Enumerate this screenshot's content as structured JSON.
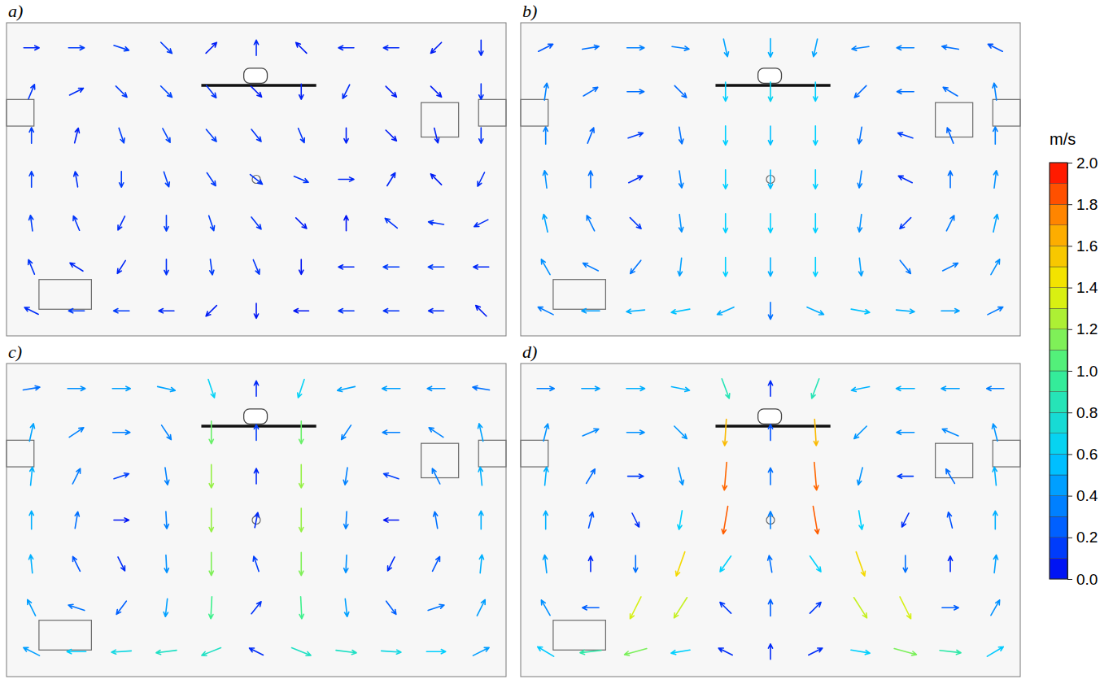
{
  "chart_data": [
    {
      "type": "quiver",
      "title": "a)",
      "xlim": [
        0,
        1
      ],
      "ylim": [
        0,
        1
      ],
      "tick_labels": false,
      "x": [
        0.05,
        0.14,
        0.23,
        0.32,
        0.41,
        0.5,
        0.59,
        0.68,
        0.77,
        0.86,
        0.95
      ],
      "y": [
        0.92,
        0.78,
        0.64,
        0.5,
        0.36,
        0.22,
        0.08
      ],
      "u": [
        [
          0.1,
          0.15,
          0.15,
          0.1,
          0.05,
          0,
          -0.05,
          -0.1,
          -0.1,
          -0.05,
          0
        ],
        [
          0.05,
          0.1,
          0.1,
          0.12,
          0.08,
          0.05,
          0,
          -0.05,
          0.05,
          0.05,
          0
        ],
        [
          0,
          0.02,
          0.05,
          0.08,
          0.1,
          0.08,
          0.05,
          0,
          0.05,
          0.02,
          0
        ],
        [
          0,
          -0.02,
          0,
          0.05,
          0.08,
          0.1,
          0.12,
          0.1,
          0.05,
          -0.05,
          -0.05
        ],
        [
          -0.02,
          -0.05,
          -0.05,
          0,
          0.05,
          0.08,
          0.05,
          0,
          -0.1,
          -0.12,
          -0.1
        ],
        [
          -0.05,
          -0.08,
          -0.05,
          0,
          0.02,
          0.05,
          0,
          -0.1,
          -0.15,
          -0.15,
          -0.1
        ],
        [
          -0.1,
          -0.15,
          -0.15,
          -0.1,
          -0.05,
          0,
          -0.05,
          -0.12,
          -0.12,
          -0.1,
          -0.05
        ]
      ],
      "v": [
        [
          0,
          0,
          -0.05,
          -0.1,
          0.05,
          0.1,
          0.05,
          0,
          0,
          -0.05,
          -0.1
        ],
        [
          0.12,
          0.05,
          -0.1,
          -0.12,
          -0.1,
          -0.05,
          -0.08,
          -0.1,
          -0.05,
          -0.05,
          -0.12
        ],
        [
          0.15,
          0.08,
          -0.15,
          -0.15,
          -0.12,
          -0.1,
          -0.12,
          -0.08,
          -0.05,
          -0.08,
          -0.12
        ],
        [
          0.15,
          0.12,
          -0.15,
          -0.15,
          -0.12,
          -0.08,
          -0.05,
          0,
          0.08,
          0.05,
          -0.1
        ],
        [
          0.15,
          0.12,
          -0.1,
          -0.15,
          -0.15,
          -0.1,
          -0.05,
          0.05,
          0.08,
          0.02,
          -0.05
        ],
        [
          0.12,
          0.05,
          -0.08,
          -0.12,
          -0.15,
          -0.12,
          -0.05,
          0,
          0,
          0,
          0
        ],
        [
          0.05,
          0,
          0,
          0,
          -0.05,
          -0.05,
          0,
          0,
          0,
          0,
          0.05
        ]
      ]
    },
    {
      "type": "quiver",
      "title": "b)",
      "xlim": [
        0,
        1
      ],
      "ylim": [
        0,
        1
      ],
      "tick_labels": false,
      "x": [
        0.05,
        0.14,
        0.23,
        0.32,
        0.41,
        0.5,
        0.59,
        0.68,
        0.77,
        0.86,
        0.95
      ],
      "y": [
        0.92,
        0.78,
        0.64,
        0.5,
        0.36,
        0.22,
        0.08
      ],
      "u": [
        [
          0.2,
          0.3,
          0.35,
          0.35,
          0.1,
          0,
          -0.1,
          -0.35,
          -0.35,
          -0.3,
          -0.2
        ],
        [
          0.05,
          0.25,
          0.3,
          0.2,
          0,
          0,
          0,
          -0.2,
          -0.3,
          -0.25,
          -0.05
        ],
        [
          0,
          0.1,
          0.15,
          0.05,
          0,
          0,
          0,
          -0.05,
          -0.15,
          -0.1,
          0
        ],
        [
          -0.05,
          0,
          0.1,
          0.05,
          0,
          0,
          0,
          -0.05,
          -0.1,
          0,
          0.05
        ],
        [
          -0.1,
          -0.15,
          0.1,
          0.05,
          0,
          0,
          0,
          -0.05,
          -0.1,
          0.15,
          0.1
        ],
        [
          -0.2,
          -0.3,
          -0.2,
          -0.05,
          0,
          0,
          0,
          0.05,
          0.2,
          0.3,
          0.2
        ],
        [
          -0.3,
          -0.45,
          -0.5,
          -0.55,
          -0.45,
          0,
          0.45,
          0.55,
          0.5,
          0.45,
          0.3
        ]
      ],
      "v": [
        [
          0.1,
          0.05,
          0,
          -0.05,
          -0.45,
          -0.5,
          -0.45,
          -0.05,
          0,
          0.05,
          0.1
        ],
        [
          0.35,
          0.15,
          0,
          -0.2,
          -0.6,
          -0.65,
          -0.6,
          -0.2,
          0,
          0.15,
          0.35
        ],
        [
          0.35,
          0.25,
          0.05,
          -0.3,
          -0.6,
          -0.55,
          -0.6,
          -0.3,
          0.05,
          0.25,
          0.35
        ],
        [
          0.4,
          0.3,
          0.05,
          -0.35,
          -0.6,
          -0.55,
          -0.6,
          -0.35,
          0.05,
          0.3,
          0.4
        ],
        [
          0.45,
          0.3,
          -0.1,
          -0.4,
          -0.6,
          -0.6,
          -0.6,
          -0.4,
          -0.1,
          0.3,
          0.45
        ],
        [
          0.35,
          0.15,
          -0.25,
          -0.45,
          -0.6,
          -0.5,
          -0.6,
          -0.45,
          -0.25,
          0.15,
          0.35
        ],
        [
          0.15,
          0,
          -0.05,
          -0.1,
          -0.2,
          -0.3,
          -0.2,
          -0.1,
          -0.05,
          0,
          0.15
        ]
      ]
    },
    {
      "type": "quiver",
      "title": "c)",
      "xlim": [
        0,
        1
      ],
      "ylim": [
        0,
        1
      ],
      "tick_labels": false,
      "x": [
        0.05,
        0.14,
        0.23,
        0.32,
        0.41,
        0.5,
        0.59,
        0.68,
        0.77,
        0.86,
        0.95
      ],
      "y": [
        0.92,
        0.78,
        0.64,
        0.5,
        0.36,
        0.22,
        0.08
      ],
      "u": [
        [
          0.3,
          0.4,
          0.45,
          0.45,
          0.2,
          0,
          -0.2,
          -0.45,
          -0.45,
          -0.4,
          -0.3
        ],
        [
          0.1,
          0.3,
          0.35,
          0.2,
          0,
          0,
          0,
          -0.2,
          -0.35,
          -0.3,
          -0.1
        ],
        [
          0.05,
          0.15,
          0.15,
          0.05,
          0,
          0,
          0,
          -0.05,
          -0.15,
          -0.15,
          -0.05
        ],
        [
          0,
          0.05,
          0.05,
          0.02,
          0,
          0.02,
          0,
          -0.02,
          -0.05,
          -0.05,
          0
        ],
        [
          -0.05,
          -0.1,
          0.05,
          0.02,
          0,
          -0.05,
          0,
          -0.02,
          -0.05,
          0.1,
          0.05
        ],
        [
          -0.2,
          -0.3,
          -0.15,
          -0.05,
          -0.05,
          0.08,
          0.05,
          0.05,
          0.15,
          0.3,
          0.2
        ],
        [
          -0.4,
          -0.6,
          -0.7,
          -0.8,
          -0.75,
          -0.1,
          0.75,
          0.8,
          0.7,
          0.6,
          0.4
        ]
      ],
      "v": [
        [
          0.05,
          0,
          0,
          -0.1,
          -0.6,
          0.1,
          -0.6,
          -0.1,
          0,
          0,
          0.05
        ],
        [
          0.45,
          0.2,
          0,
          -0.3,
          -1.1,
          0.15,
          -1.1,
          -0.3,
          0,
          0.2,
          0.45
        ],
        [
          0.5,
          0.3,
          0.05,
          -0.35,
          -1.2,
          0.1,
          -1.2,
          -0.35,
          0.05,
          0.3,
          0.5
        ],
        [
          0.5,
          0.3,
          0,
          -0.35,
          -1.2,
          0.1,
          -1.2,
          -0.35,
          0,
          0.3,
          0.5
        ],
        [
          0.5,
          0.2,
          -0.1,
          -0.4,
          -1.15,
          0.15,
          -1.15,
          -0.4,
          -0.1,
          0.2,
          0.5
        ],
        [
          0.4,
          0.1,
          -0.2,
          -0.45,
          -1.0,
          0.1,
          -1.0,
          -0.45,
          -0.2,
          0.1,
          0.4
        ],
        [
          0.2,
          0,
          -0.05,
          -0.1,
          -0.3,
          0.05,
          -0.3,
          -0.1,
          -0.05,
          0,
          0.2
        ]
      ]
    },
    {
      "type": "quiver",
      "title": "d)",
      "xlim": [
        0,
        1
      ],
      "ylim": [
        0,
        1
      ],
      "tick_labels": false,
      "x": [
        0.05,
        0.14,
        0.23,
        0.32,
        0.41,
        0.5,
        0.59,
        0.68,
        0.77,
        0.86,
        0.95
      ],
      "y": [
        0.92,
        0.78,
        0.64,
        0.5,
        0.36,
        0.22,
        0.08
      ],
      "u": [
        [
          0.35,
          0.45,
          0.5,
          0.5,
          0.3,
          0,
          -0.3,
          -0.5,
          -0.5,
          -0.45,
          -0.35
        ],
        [
          0.1,
          0.35,
          0.4,
          0.3,
          -0.1,
          0,
          0.1,
          -0.3,
          -0.4,
          -0.35,
          -0.1
        ],
        [
          0.05,
          0.15,
          0.15,
          0.1,
          -0.15,
          0,
          0.15,
          -0.1,
          -0.15,
          -0.15,
          -0.05
        ],
        [
          0,
          0.05,
          0.05,
          -0.1,
          -0.3,
          0,
          0.3,
          0.1,
          -0.05,
          -0.05,
          0
        ],
        [
          -0.05,
          0,
          0,
          -0.5,
          -0.35,
          -0.05,
          0.35,
          0.5,
          0,
          0,
          0.05
        ],
        [
          -0.2,
          -0.25,
          -0.6,
          -0.7,
          -0.1,
          0,
          0.1,
          0.7,
          0.6,
          0.25,
          0.2
        ],
        [
          -0.5,
          -0.9,
          -1.1,
          -0.6,
          -0.1,
          0,
          0.1,
          0.6,
          1.1,
          0.9,
          0.5
        ]
      ],
      "v": [
        [
          0,
          0,
          0,
          -0.1,
          -0.8,
          0.1,
          -0.8,
          -0.1,
          0,
          0,
          0
        ],
        [
          0.4,
          0.15,
          0,
          -0.3,
          -1.6,
          0.2,
          -1.6,
          -0.3,
          0,
          0.15,
          0.4
        ],
        [
          0.5,
          0.25,
          0,
          -0.4,
          -1.8,
          0.3,
          -1.8,
          -0.4,
          0,
          0.25,
          0.5
        ],
        [
          0.5,
          0.2,
          -0.1,
          -0.6,
          -1.8,
          0.35,
          -1.8,
          -0.6,
          -0.1,
          0.2,
          0.5
        ],
        [
          0.45,
          0.1,
          -0.3,
          -1.4,
          -0.5,
          0.3,
          -0.5,
          -1.4,
          -0.3,
          0.1,
          0.45
        ],
        [
          0.35,
          0,
          -1.2,
          -1.1,
          0.1,
          0.25,
          0.1,
          -1.1,
          -1.2,
          0,
          0.35
        ],
        [
          0.3,
          -0.1,
          -0.3,
          -0.1,
          0.05,
          0.1,
          0.05,
          -0.1,
          -0.3,
          -0.1,
          0.3
        ]
      ]
    }
  ],
  "colorbar": {
    "label": "m/s",
    "range": [
      0,
      2
    ],
    "ticks": [
      {
        "value": 0,
        "label": "0.0"
      },
      0.2,
      0.4,
      0.6,
      0.8,
      {
        "value": 1,
        "label": "1.0"
      },
      1.2,
      1.4,
      1.6,
      1.8,
      {
        "value": 2,
        "label": "2.0"
      }
    ]
  }
}
